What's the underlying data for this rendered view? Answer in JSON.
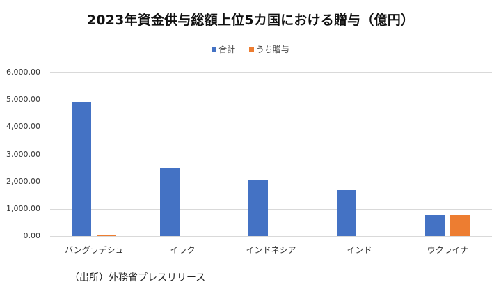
{
  "chart_data": {
    "type": "bar",
    "title": "2023年資金供与総額上位5カ国における贈与（億円）",
    "categories": [
      "バングラデシュ",
      "イラク",
      "インドネシア",
      "インド",
      "ウクライナ"
    ],
    "series": [
      {
        "name": "合計",
        "color": "#4472C4",
        "values": [
          4940,
          2510,
          2040,
          1690,
          800
        ]
      },
      {
        "name": "うち贈与",
        "color": "#ED7D31",
        "values": [
          40,
          0,
          0,
          0,
          800
        ]
      }
    ],
    "xlabel": "",
    "ylabel": "",
    "ylim": [
      0,
      6000
    ],
    "yticks": [
      "0.00",
      "1,000.00",
      "2,000.00",
      "3,000.00",
      "4,000.00",
      "5,000.00",
      "6,000.00"
    ],
    "grid": true,
    "legend_position": "top",
    "source_note": "（出所）外務省プレスリリース"
  },
  "title": "2023年資金供与総額上位5カ国における贈与（億円）",
  "legend": [
    {
      "label": "合計",
      "color": "#4472C4"
    },
    {
      "label": "うち贈与",
      "color": "#ED7D31"
    }
  ],
  "yticks": [
    "6,000.00",
    "5,000.00",
    "4,000.00",
    "3,000.00",
    "2,000.00",
    "1,000.00",
    "0.00"
  ],
  "categories": [
    "バングラデシュ",
    "イラク",
    "インドネシア",
    "インド",
    "ウクライナ"
  ],
  "source": "（出所）外務省プレスリリース"
}
